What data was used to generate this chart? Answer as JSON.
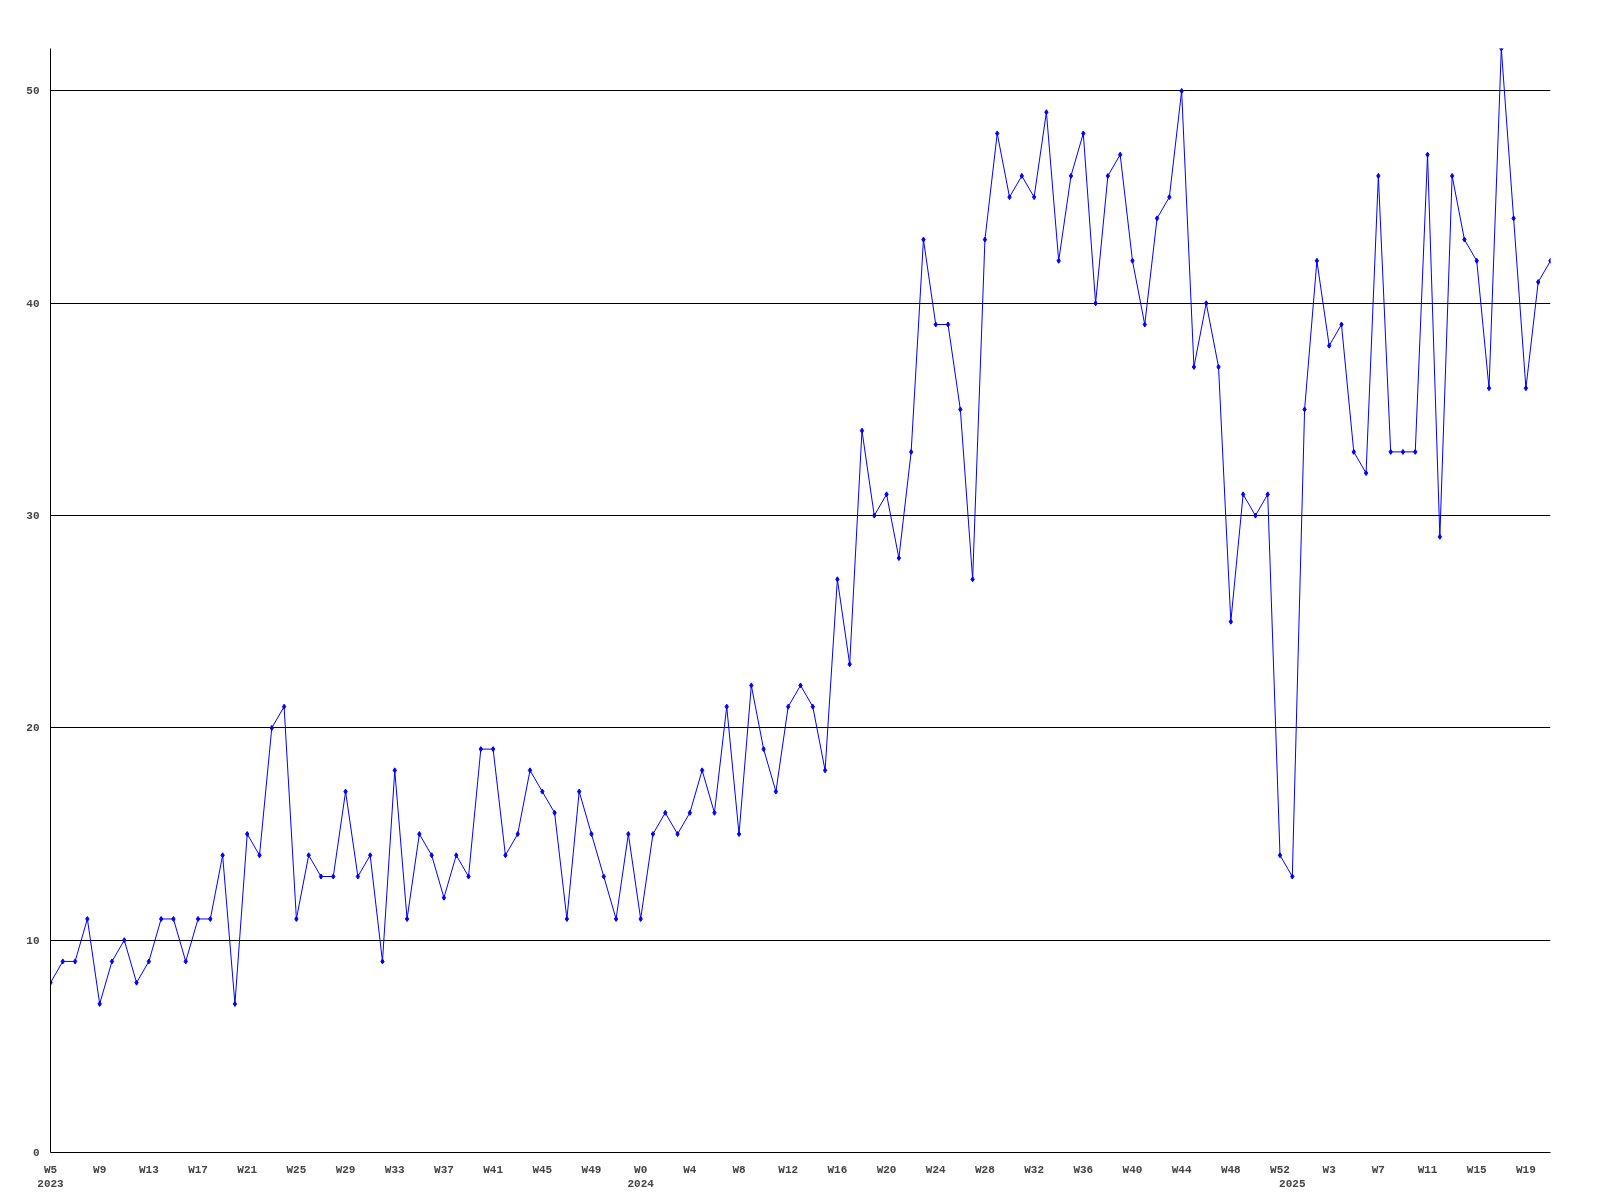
{
  "chart_data": {
    "type": "line",
    "categories": [
      "W5\n2023",
      null,
      null,
      null,
      "W9",
      null,
      null,
      null,
      "W13",
      null,
      null,
      null,
      "W17",
      null,
      null,
      null,
      "W21",
      null,
      null,
      null,
      "W25",
      null,
      null,
      null,
      "W29",
      null,
      null,
      null,
      "W33",
      null,
      null,
      null,
      "W37",
      null,
      null,
      null,
      "W41",
      null,
      null,
      null,
      "W45",
      null,
      null,
      null,
      "W49",
      null,
      null,
      null,
      "W0\n2024",
      null,
      null,
      null,
      "W4",
      null,
      null,
      null,
      "W8",
      null,
      null,
      null,
      "W12",
      null,
      null,
      null,
      "W16",
      null,
      null,
      null,
      "W20",
      null,
      null,
      null,
      "W24",
      null,
      null,
      null,
      "W28",
      null,
      null,
      null,
      "W32",
      null,
      null,
      null,
      "W36",
      null,
      null,
      null,
      "W40",
      null,
      null,
      null,
      "W44",
      null,
      null,
      null,
      "W48",
      null,
      null,
      null,
      "W52",
      "\n2025",
      null,
      null,
      "W3",
      null,
      null,
      null,
      "W7",
      null,
      null,
      null,
      "W11",
      null,
      null,
      null,
      "W15",
      null,
      null,
      null,
      "W19",
      null,
      null
    ],
    "series": [
      {
        "color": "#0000ff",
        "values": [
          8,
          9,
          9,
          11,
          7,
          9,
          10,
          8,
          9,
          11,
          11,
          9,
          11,
          11,
          14,
          7,
          15,
          14,
          20,
          21,
          11,
          14,
          13,
          13,
          17,
          13,
          14,
          9,
          18,
          11,
          15,
          14,
          12,
          14,
          13,
          19,
          19,
          14,
          15,
          18,
          17,
          16,
          11,
          17,
          15,
          13,
          11,
          15,
          11,
          15,
          16,
          15,
          16,
          18,
          16,
          21,
          15,
          22,
          19,
          17,
          21,
          22,
          21,
          18,
          27,
          23,
          34,
          30,
          31,
          28,
          33,
          43,
          39,
          39,
          35,
          27,
          43,
          48,
          45,
          46,
          45,
          49,
          42,
          46,
          48,
          40,
          46,
          47,
          42,
          39,
          44,
          45,
          50,
          37,
          40,
          37,
          25,
          31,
          30,
          31,
          14,
          13,
          35,
          42,
          38,
          39,
          33,
          32,
          46,
          33,
          33,
          33,
          47,
          29,
          46,
          43,
          42,
          36,
          52,
          44,
          36,
          41,
          42
        ]
      }
    ],
    "ylim": [
      0,
      52
    ],
    "yticks": [
      0,
      10,
      20,
      30,
      40,
      50
    ],
    "grid": "y",
    "marker": "diamond",
    "line_style": "solid"
  }
}
